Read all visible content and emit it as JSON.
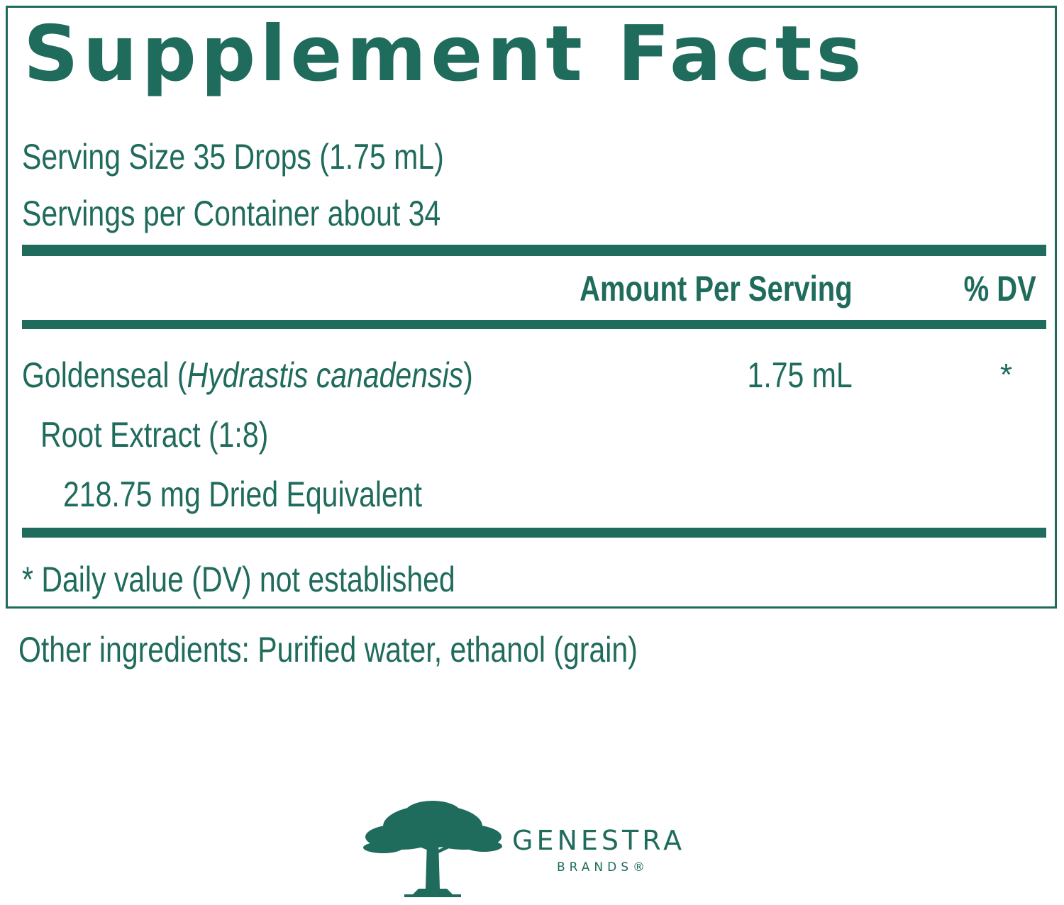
{
  "label": {
    "title": "Supplement Facts",
    "serving_size": "Serving Size 35 Drops (1.75 mL)",
    "servings_per_container": "Servings per Container about 34",
    "header_amount": "Amount Per Serving",
    "header_dv": "% DV",
    "ingredient": {
      "name_prefix": "Goldenseal (",
      "name_latin": "Hydrastis canadensis",
      "name_suffix": ")",
      "line2": "Root Extract (1:8)",
      "line3": "218.75 mg Dried Equivalent",
      "amount": "1.75 mL",
      "dv": "*"
    },
    "footnote": "* Daily value (DV) not established"
  },
  "other_ingredients": "Other ingredients: Purified water, ethanol (grain)",
  "brand": {
    "name": "GENESTRA",
    "sub": "BRANDS®",
    "logo_icon": "tree-icon"
  },
  "colors": {
    "accent": "#1f6b5c",
    "background": "#ffffff"
  }
}
